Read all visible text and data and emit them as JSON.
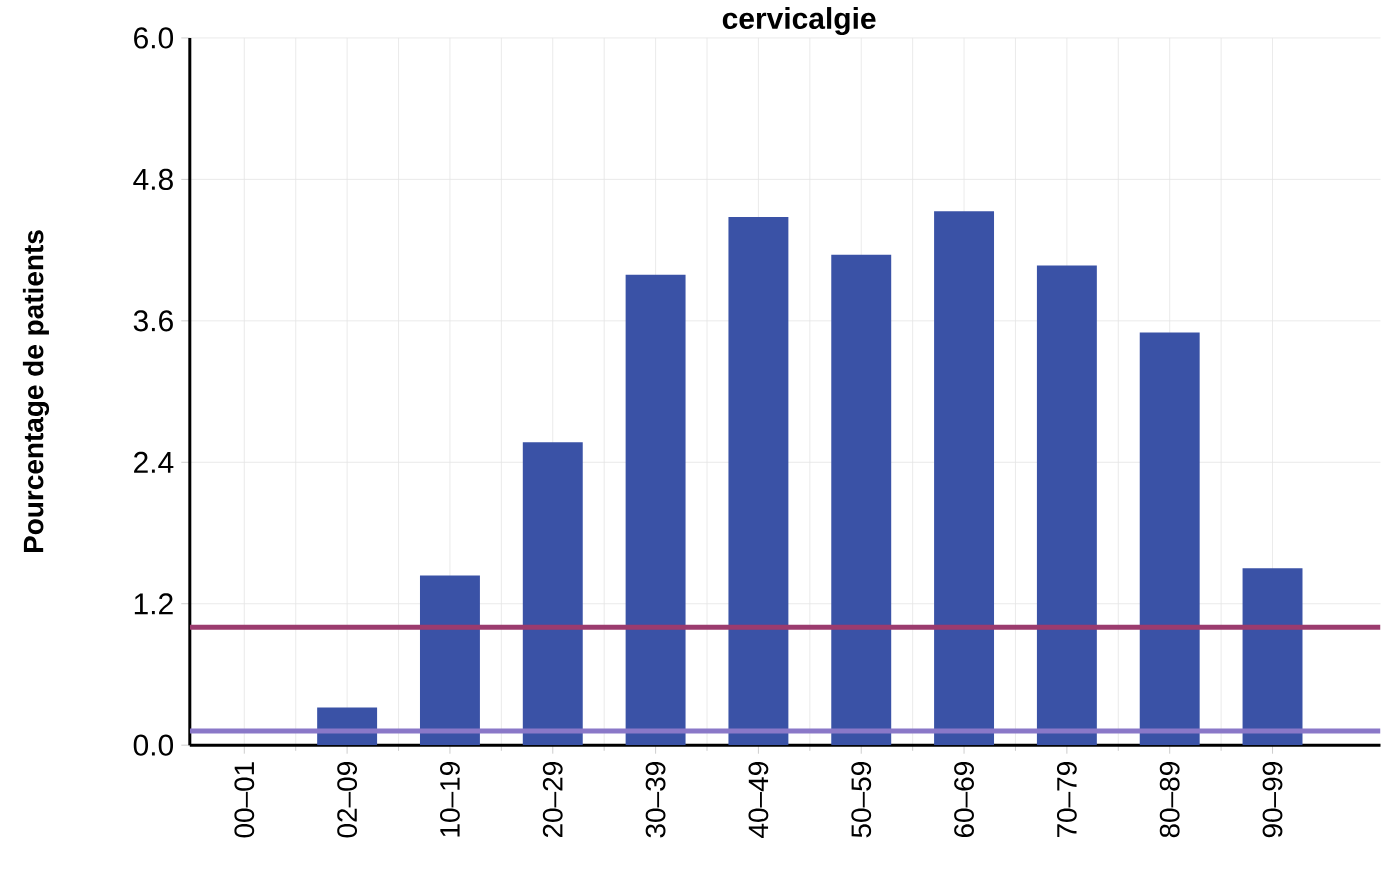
{
  "chart_data": {
    "type": "bar",
    "title": "cervicalgie",
    "ylabel": "Pourcentage de patients",
    "categories": [
      "00–01",
      "02–09",
      "10–19",
      "20–29",
      "30–39",
      "40–49",
      "50–59",
      "60–69",
      "70–79",
      "80–89",
      "90–99"
    ],
    "values": [
      0,
      0.32,
      1.44,
      2.57,
      3.99,
      4.48,
      4.16,
      4.53,
      4.07,
      3.5,
      1.5
    ],
    "color": "#3a52a6",
    "ylim": [
      0,
      6
    ],
    "yticks": [
      {
        "value": 0,
        "label": "0.0"
      },
      1.2,
      2.4,
      3.6,
      4.8,
      {
        "value": 6,
        "label": "6.0"
      }
    ],
    "grid": true,
    "ref_lines": [
      {
        "axis": "y",
        "value": 1.0,
        "color": "#9b3b6e"
      },
      {
        "axis": "y",
        "value": 0.12,
        "color": "#8a78c8"
      }
    ]
  }
}
